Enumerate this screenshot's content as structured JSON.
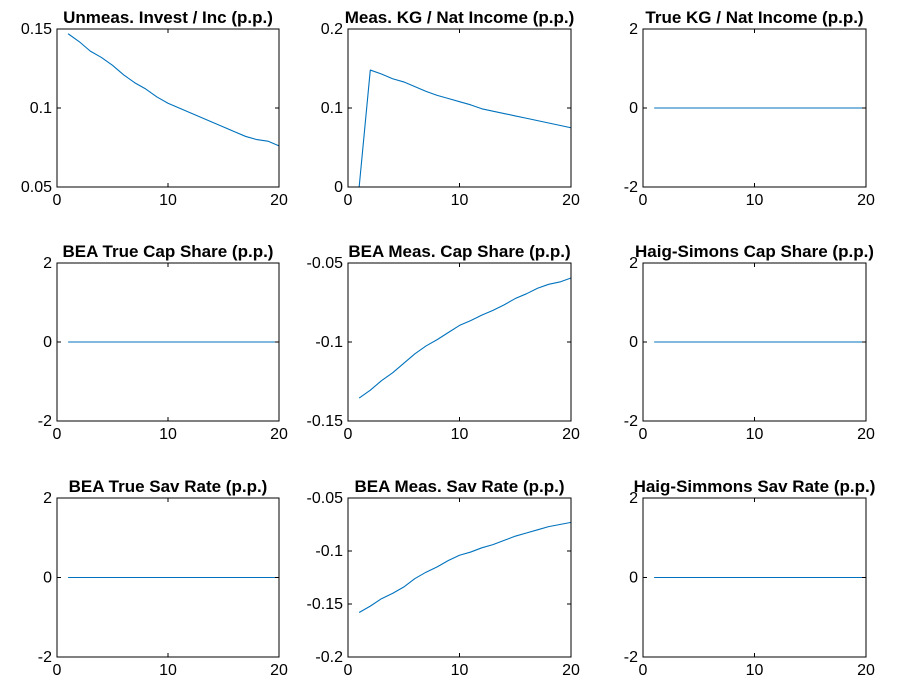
{
  "figure": {
    "line_color": "#0072bd",
    "axes_color": "#000000",
    "background": "#ffffff"
  },
  "chart_data": [
    {
      "type": "line",
      "title": "Unmeas. Invest / Inc (p.p.)",
      "xlim": [
        0,
        20
      ],
      "ylim": [
        0.05,
        0.15
      ],
      "xticks": [
        0,
        10,
        20
      ],
      "xtick_labels": [
        "0",
        "10",
        "20"
      ],
      "yticks": [
        0.05,
        0.1,
        0.15
      ],
      "ytick_labels": [
        "0.05",
        "0.1",
        "0.15"
      ],
      "grid": false,
      "series": [
        {
          "x": [
            1,
            2,
            3,
            4,
            5,
            6,
            7,
            8,
            9,
            10,
            11,
            12,
            13,
            14,
            15,
            16,
            17,
            18,
            19,
            20
          ],
          "y": [
            0.147,
            0.142,
            0.136,
            0.132,
            0.127,
            0.121,
            0.116,
            0.112,
            0.107,
            0.103,
            0.1,
            0.097,
            0.094,
            0.091,
            0.088,
            0.085,
            0.082,
            0.08,
            0.079,
            0.076
          ]
        }
      ]
    },
    {
      "type": "line",
      "title": "Meas. KG / Nat Income (p.p.)",
      "xlim": [
        0,
        20
      ],
      "ylim": [
        0,
        0.2
      ],
      "xticks": [
        0,
        10,
        20
      ],
      "xtick_labels": [
        "0",
        "10",
        "20"
      ],
      "yticks": [
        0,
        0.1,
        0.2
      ],
      "ytick_labels": [
        "0",
        "0.1",
        "0.2"
      ],
      "grid": false,
      "series": [
        {
          "x": [
            1,
            2,
            3,
            4,
            5,
            6,
            7,
            8,
            9,
            10,
            11,
            12,
            13,
            14,
            15,
            16,
            17,
            18,
            19,
            20
          ],
          "y": [
            0,
            0.148,
            0.143,
            0.137,
            0.133,
            0.127,
            0.121,
            0.116,
            0.112,
            0.108,
            0.104,
            0.099,
            0.096,
            0.093,
            0.09,
            0.087,
            0.084,
            0.081,
            0.078,
            0.075
          ]
        }
      ]
    },
    {
      "type": "line",
      "title": "True KG / Nat Income (p.p.)",
      "xlim": [
        0,
        20
      ],
      "ylim": [
        -2,
        2
      ],
      "xticks": [
        0,
        10,
        20
      ],
      "xtick_labels": [
        "0",
        "10",
        "20"
      ],
      "yticks": [
        -2,
        0,
        2
      ],
      "ytick_labels": [
        "-2",
        "0",
        "2"
      ],
      "grid": false,
      "series": [
        {
          "x": [
            1,
            20
          ],
          "y": [
            0,
            0
          ]
        }
      ]
    },
    {
      "type": "line",
      "title": "BEA True Cap Share (p.p.)",
      "xlim": [
        0,
        20
      ],
      "ylim": [
        -2,
        2
      ],
      "xticks": [
        0,
        10,
        20
      ],
      "xtick_labels": [
        "0",
        "10",
        "20"
      ],
      "yticks": [
        -2,
        0,
        2
      ],
      "ytick_labels": [
        "-2",
        "0",
        "2"
      ],
      "grid": false,
      "series": [
        {
          "x": [
            1,
            20
          ],
          "y": [
            0,
            0
          ]
        }
      ]
    },
    {
      "type": "line",
      "title": "BEA Meas. Cap Share (p.p.)",
      "xlim": [
        0,
        20
      ],
      "ylim": [
        -0.15,
        -0.05
      ],
      "xticks": [
        0,
        10,
        20
      ],
      "xtick_labels": [
        "0",
        "10",
        "20"
      ],
      "yticks": [
        -0.15,
        -0.1,
        -0.05
      ],
      "ytick_labels": [
        "-0.15",
        "-0.1",
        "-0.05"
      ],
      "grid": false,
      "series": [
        {
          "x": [
            1,
            2,
            3,
            4,
            5,
            6,
            7,
            8,
            9,
            10,
            11,
            12,
            13,
            14,
            15,
            16,
            17,
            18,
            19,
            20
          ],
          "y": [
            -0.1355,
            -0.1305,
            -0.1245,
            -0.1195,
            -0.1135,
            -0.1075,
            -0.1025,
            -0.0985,
            -0.094,
            -0.0895,
            -0.0865,
            -0.083,
            -0.08,
            -0.0765,
            -0.0725,
            -0.0695,
            -0.066,
            -0.0635,
            -0.062,
            -0.0595
          ]
        }
      ]
    },
    {
      "type": "line",
      "title": "Haig-Simons Cap Share (p.p.)",
      "xlim": [
        0,
        20
      ],
      "ylim": [
        -2,
        2
      ],
      "xticks": [
        0,
        10,
        20
      ],
      "xtick_labels": [
        "0",
        "10",
        "20"
      ],
      "yticks": [
        -2,
        0,
        2
      ],
      "ytick_labels": [
        "-2",
        "0",
        "2"
      ],
      "grid": false,
      "series": [
        {
          "x": [
            1,
            20
          ],
          "y": [
            0,
            0
          ]
        }
      ]
    },
    {
      "type": "line",
      "title": "BEA True Sav Rate (p.p.)",
      "xlim": [
        0,
        20
      ],
      "ylim": [
        -2,
        2
      ],
      "xticks": [
        0,
        10,
        20
      ],
      "xtick_labels": [
        "0",
        "10",
        "20"
      ],
      "yticks": [
        -2,
        0,
        2
      ],
      "ytick_labels": [
        "-2",
        "0",
        "2"
      ],
      "grid": false,
      "series": [
        {
          "x": [
            1,
            20
          ],
          "y": [
            0,
            0
          ]
        }
      ]
    },
    {
      "type": "line",
      "title": "BEA Meas. Sav Rate (p.p.)",
      "xlim": [
        0,
        20
      ],
      "ylim": [
        -0.2,
        -0.05
      ],
      "xticks": [
        0,
        10,
        20
      ],
      "xtick_labels": [
        "0",
        "10",
        "20"
      ],
      "yticks": [
        -0.2,
        -0.15,
        -0.1,
        -0.05
      ],
      "ytick_labels": [
        "-0.2",
        "-0.15",
        "-0.1",
        "-0.05"
      ],
      "grid": false,
      "series": [
        {
          "x": [
            1,
            2,
            3,
            4,
            5,
            6,
            7,
            8,
            9,
            10,
            11,
            12,
            13,
            14,
            15,
            16,
            17,
            18,
            19,
            20
          ],
          "y": [
            -0.158,
            -0.152,
            -0.145,
            -0.14,
            -0.134,
            -0.126,
            -0.12,
            -0.115,
            -0.109,
            -0.104,
            -0.101,
            -0.097,
            -0.094,
            -0.09,
            -0.086,
            -0.083,
            -0.08,
            -0.077,
            -0.075,
            -0.073
          ]
        }
      ]
    },
    {
      "type": "line",
      "title": "Haig-Simmons Sav Rate (p.p.)",
      "xlim": [
        0,
        20
      ],
      "ylim": [
        -2,
        2
      ],
      "xticks": [
        0,
        10,
        20
      ],
      "xtick_labels": [
        "0",
        "10",
        "20"
      ],
      "yticks": [
        -2,
        0,
        2
      ],
      "ytick_labels": [
        "-2",
        "0",
        "2"
      ],
      "grid": false,
      "series": [
        {
          "x": [
            1,
            20
          ],
          "y": [
            0,
            0
          ]
        }
      ]
    }
  ]
}
